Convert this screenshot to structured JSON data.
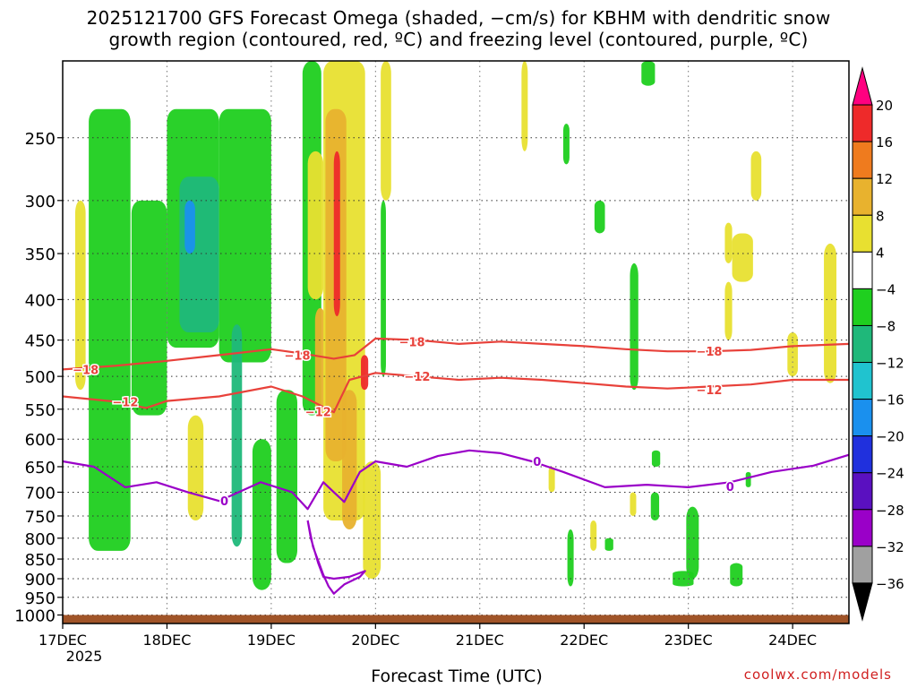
{
  "title_line1": "2025121700 GFS Forecast Omega (shaded, −cm/s) for KBHM with dendritic snow",
  "title_line2": "growth region (contoured, red, ºC) and freezing level (contoured, purple, ºC)",
  "credit": "coolwx.com/models",
  "colors": {
    "isotherm": "#e8413a",
    "freezing": "#9a00c8",
    "ground": "#a05428"
  },
  "chart_data": {
    "type": "heatmap",
    "xlabel": "Forecast Time (UTC)",
    "ylabel": "",
    "x_ticks": [
      "17DEC",
      "18DEC",
      "19DEC",
      "20DEC",
      "21DEC",
      "22DEC",
      "23DEC",
      "24DEC"
    ],
    "x_year_label": "2025",
    "x_range_days": [
      0,
      7.54
    ],
    "y_ticks": [
      250,
      300,
      350,
      400,
      450,
      500,
      550,
      600,
      650,
      700,
      750,
      800,
      850,
      900,
      950,
      1000
    ],
    "y_range_hpa": [
      200,
      1025
    ],
    "y_scale": "log-pressure",
    "grid": true,
    "colorbar": {
      "labels": [
        "20",
        "16",
        "12",
        "8",
        "4",
        "−4",
        "−8",
        "−12",
        "−16",
        "−20",
        "−24",
        "−28",
        "−32",
        "−36"
      ],
      "colors": [
        "#ff0080",
        "#ee2a2a",
        "#ef7b1e",
        "#e8b22e",
        "#e8e030",
        "#ffffff",
        "#1fcf1f",
        "#1fb87a",
        "#20c3cf",
        "#1a90ee",
        "#2030dd",
        "#5a10c0",
        "#9a00c8",
        "#a0a0a0",
        "#000000"
      ]
    },
    "omega_regions": [
      {
        "t0": 0.25,
        "t1": 0.65,
        "p0": 230,
        "p1": 830,
        "v": -8
      },
      {
        "t0": 0.66,
        "t1": 1.0,
        "p0": 300,
        "p1": 560,
        "v": -8
      },
      {
        "t0": 1.0,
        "t1": 1.5,
        "p0": 230,
        "p1": 460,
        "v": -10
      },
      {
        "t0": 1.12,
        "t1": 1.5,
        "p0": 280,
        "p1": 440,
        "v": -14
      },
      {
        "t0": 1.17,
        "t1": 1.27,
        "p0": 300,
        "p1": 350,
        "v": -20
      },
      {
        "t0": 1.5,
        "t1": 2.0,
        "p0": 230,
        "p1": 480,
        "v": -8
      },
      {
        "t0": 1.62,
        "t1": 1.72,
        "p0": 430,
        "p1": 820,
        "v": -14
      },
      {
        "t0": 1.82,
        "t1": 2.0,
        "p0": 600,
        "p1": 930,
        "v": -8
      },
      {
        "t0": 2.05,
        "t1": 2.25,
        "p0": 520,
        "p1": 860,
        "v": -8
      },
      {
        "t0": 1.2,
        "t1": 1.35,
        "p0": 560,
        "p1": 760,
        "v": 6
      },
      {
        "t0": 0.12,
        "t1": 0.22,
        "p0": 300,
        "p1": 520,
        "v": 6
      },
      {
        "t0": 2.3,
        "t1": 2.48,
        "p0": 200,
        "p1": 560,
        "v": -10
      },
      {
        "t0": 2.35,
        "t1": 2.5,
        "p0": 260,
        "p1": 400,
        "v": 6
      },
      {
        "t0": 2.42,
        "t1": 2.52,
        "p0": 410,
        "p1": 560,
        "v": 10
      },
      {
        "t0": 2.5,
        "t1": 2.9,
        "p0": 200,
        "p1": 760,
        "v": 7
      },
      {
        "t0": 2.52,
        "t1": 2.72,
        "p0": 230,
        "p1": 640,
        "v": 11
      },
      {
        "t0": 2.6,
        "t1": 2.66,
        "p0": 260,
        "p1": 420,
        "v": 16
      },
      {
        "t0": 2.86,
        "t1": 2.93,
        "p0": 470,
        "p1": 520,
        "v": 16
      },
      {
        "t0": 2.68,
        "t1": 2.82,
        "p0": 520,
        "p1": 780,
        "v": 10
      },
      {
        "t0": 2.88,
        "t1": 3.05,
        "p0": 640,
        "p1": 900,
        "v": 6
      },
      {
        "t0": 3.05,
        "t1": 3.15,
        "p0": 200,
        "p1": 300,
        "v": 6
      },
      {
        "t0": 3.05,
        "t1": 3.1,
        "p0": 300,
        "p1": 500,
        "v": -8
      },
      {
        "t0": 4.4,
        "t1": 4.46,
        "p0": 200,
        "p1": 260,
        "v": 6
      },
      {
        "t0": 4.8,
        "t1": 4.86,
        "p0": 240,
        "p1": 270,
        "v": -8
      },
      {
        "t0": 4.66,
        "t1": 4.72,
        "p0": 650,
        "p1": 700,
        "v": 6
      },
      {
        "t0": 4.84,
        "t1": 4.9,
        "p0": 780,
        "p1": 920,
        "v": -8
      },
      {
        "t0": 5.1,
        "t1": 5.2,
        "p0": 300,
        "p1": 330,
        "v": -8
      },
      {
        "t0": 5.06,
        "t1": 5.12,
        "p0": 760,
        "p1": 830,
        "v": 6
      },
      {
        "t0": 5.2,
        "t1": 5.28,
        "p0": 800,
        "p1": 830,
        "v": -8
      },
      {
        "t0": 5.44,
        "t1": 5.52,
        "p0": 360,
        "p1": 520,
        "v": -8
      },
      {
        "t0": 5.55,
        "t1": 5.68,
        "p0": 200,
        "p1": 215,
        "v": -8
      },
      {
        "t0": 5.44,
        "t1": 5.5,
        "p0": 700,
        "p1": 750,
        "v": 6
      },
      {
        "t0": 5.65,
        "t1": 5.73,
        "p0": 620,
        "p1": 650,
        "v": -8
      },
      {
        "t0": 5.64,
        "t1": 5.72,
        "p0": 700,
        "p1": 760,
        "v": -8
      },
      {
        "t0": 5.98,
        "t1": 6.1,
        "p0": 730,
        "p1": 900,
        "v": -8
      },
      {
        "t0": 5.85,
        "t1": 6.05,
        "p0": 880,
        "p1": 920,
        "v": -8
      },
      {
        "t0": 6.4,
        "t1": 6.52,
        "p0": 860,
        "p1": 920,
        "v": -8
      },
      {
        "t0": 6.35,
        "t1": 6.42,
        "p0": 320,
        "p1": 360,
        "v": 6
      },
      {
        "t0": 6.42,
        "t1": 6.62,
        "p0": 330,
        "p1": 380,
        "v": 6
      },
      {
        "t0": 6.6,
        "t1": 6.7,
        "p0": 260,
        "p1": 300,
        "v": 6
      },
      {
        "t0": 6.35,
        "t1": 6.42,
        "p0": 380,
        "p1": 450,
        "v": 6
      },
      {
        "t0": 6.55,
        "t1": 6.6,
        "p0": 660,
        "p1": 690,
        "v": -8
      },
      {
        "t0": 6.95,
        "t1": 7.05,
        "p0": 440,
        "p1": 500,
        "v": 6
      },
      {
        "t0": 7.3,
        "t1": 7.42,
        "p0": 340,
        "p1": 510,
        "v": 6
      }
    ],
    "isotherm_minus18": {
      "label": "−18",
      "t": [
        0.0,
        0.5,
        1.0,
        1.5,
        2.0,
        2.3,
        2.6,
        2.8,
        3.0,
        3.4,
        3.8,
        4.2,
        4.6,
        5.0,
        5.4,
        5.8,
        6.2,
        6.6,
        7.0,
        7.54
      ],
      "p": [
        490,
        485,
        478,
        470,
        462,
        468,
        475,
        470,
        448,
        450,
        455,
        452,
        455,
        458,
        462,
        465,
        465,
        463,
        458,
        455
      ],
      "label_positions": [
        {
          "t": 0.22,
          "p": 490
        },
        {
          "t": 2.25,
          "p": 470
        },
        {
          "t": 3.35,
          "p": 452
        },
        {
          "t": 6.2,
          "p": 465
        }
      ]
    },
    "isotherm_minus12": {
      "label": "−12",
      "t": [
        0.0,
        0.5,
        0.8,
        1.0,
        1.5,
        2.0,
        2.3,
        2.6,
        2.75,
        3.0,
        3.4,
        3.8,
        4.2,
        4.6,
        5.0,
        5.4,
        5.8,
        6.2,
        6.6,
        7.0,
        7.54
      ],
      "p": [
        530,
        538,
        548,
        537,
        530,
        515,
        530,
        555,
        505,
        495,
        500,
        505,
        502,
        505,
        510,
        515,
        518,
        515,
        512,
        505,
        505
      ],
      "label_positions": [
        {
          "t": 0.6,
          "p": 538
        },
        {
          "t": 2.45,
          "p": 554
        },
        {
          "t": 3.4,
          "p": 500
        },
        {
          "t": 6.2,
          "p": 520
        }
      ]
    },
    "freezing_level": {
      "label": "0",
      "t": [
        0.0,
        0.3,
        0.6,
        0.9,
        1.2,
        1.5,
        1.9,
        2.2,
        2.35,
        2.5,
        2.6,
        2.7,
        2.85,
        3.0,
        3.3,
        3.6,
        3.9,
        4.2,
        4.5,
        4.8,
        5.2,
        5.6,
        6.0,
        6.4,
        6.8,
        7.2,
        7.54
      ],
      "p": [
        640,
        650,
        690,
        680,
        700,
        718,
        680,
        700,
        735,
        680,
        700,
        720,
        660,
        640,
        650,
        630,
        620,
        625,
        640,
        660,
        690,
        685,
        690,
        680,
        660,
        648,
        628
      ],
      "label_positions": [
        {
          "t": 1.55,
          "p": 718
        },
        {
          "t": 4.55,
          "p": 640
        },
        {
          "t": 6.4,
          "p": 688
        }
      ]
    },
    "freezing_loop": {
      "t": [
        2.35,
        2.4,
        2.5,
        2.55,
        2.6,
        2.7,
        2.85,
        2.9,
        2.75,
        2.6,
        2.5,
        2.45,
        2.38,
        2.35
      ],
      "p": [
        760,
        820,
        890,
        920,
        940,
        915,
        895,
        880,
        895,
        900,
        895,
        860,
        800,
        760
      ]
    },
    "ground_pressure": 1000
  }
}
